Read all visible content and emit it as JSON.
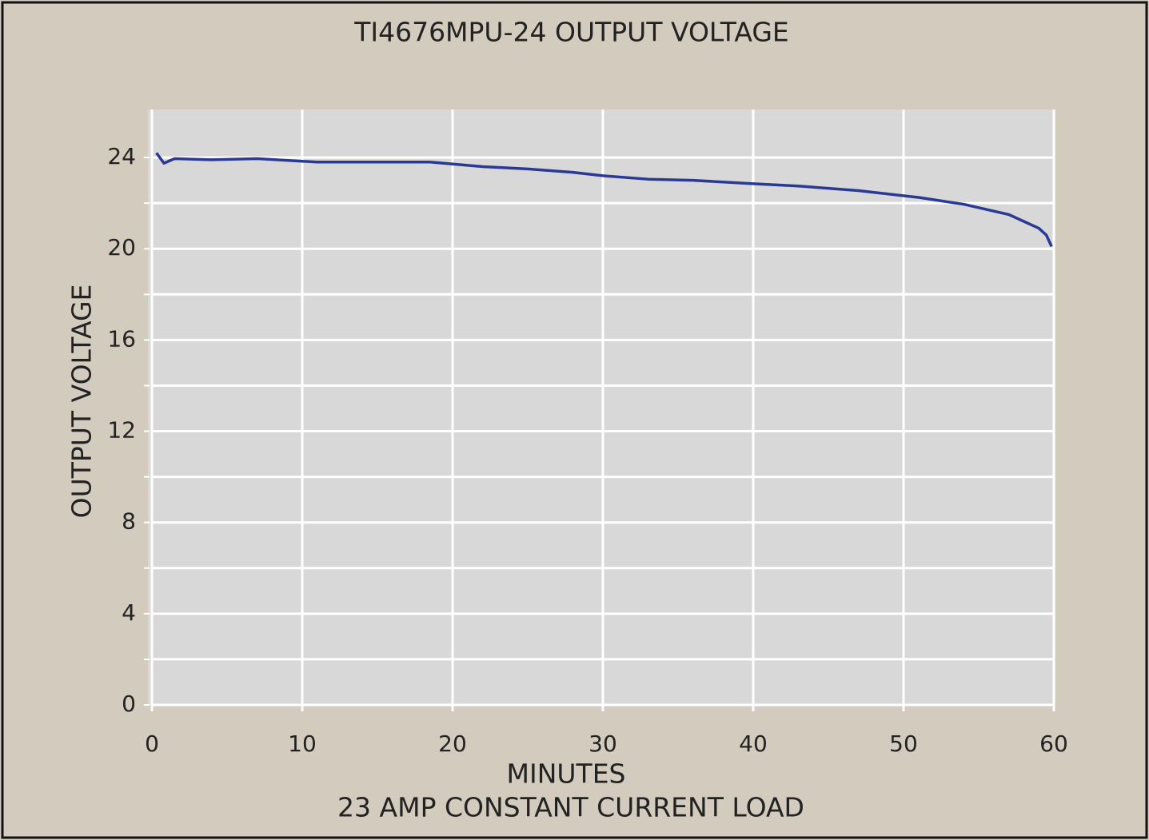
{
  "chart_data": {
    "type": "line",
    "title": "TI4676MPU-24 OUTPUT VOLTAGE",
    "xlabel": "MINUTES",
    "xlabel2": "23 AMP CONSTANT CURRENT LOAD",
    "ylabel": "OUTPUT VOLTAGE",
    "xlim": [
      0,
      60
    ],
    "ylim": [
      0,
      26
    ],
    "xticks": [
      0,
      10,
      20,
      30,
      40,
      50,
      60
    ],
    "yticks": [
      0,
      4,
      8,
      12,
      16,
      20,
      24
    ],
    "yminor": [
      2,
      6,
      10,
      14,
      18,
      22
    ],
    "grid": true,
    "series": [
      {
        "color": "#2a3a94",
        "x": [
          0.3,
          0.8,
          1.5,
          4,
          7,
          11,
          18.5,
          22,
          25,
          28,
          30,
          33,
          36,
          40,
          43,
          47,
          51,
          54,
          57,
          58,
          59,
          59.5,
          59.85
        ],
        "values": [
          24.2,
          23.75,
          23.95,
          23.9,
          23.95,
          23.8,
          23.8,
          23.6,
          23.5,
          23.35,
          23.2,
          23.05,
          23.0,
          22.85,
          22.75,
          22.55,
          22.25,
          21.95,
          21.5,
          21.2,
          20.9,
          20.6,
          20.1
        ]
      }
    ]
  }
}
